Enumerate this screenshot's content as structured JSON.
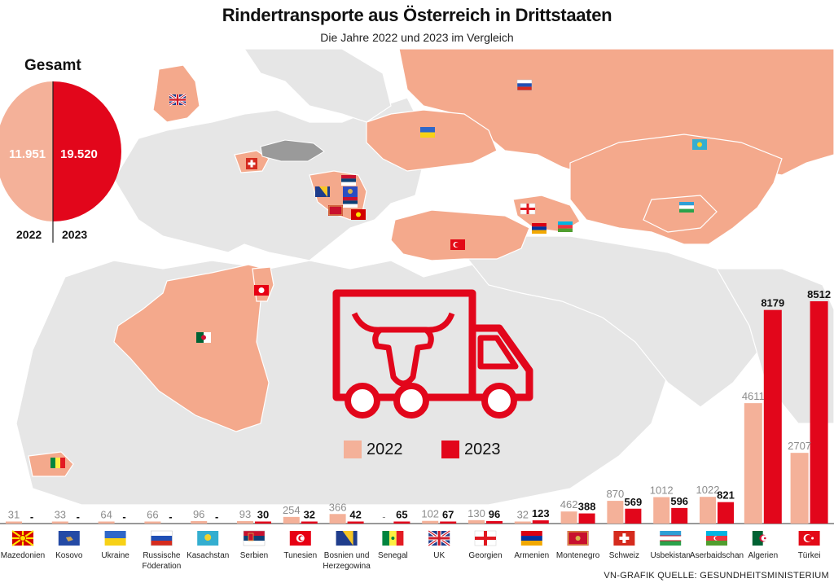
{
  "header": {
    "title": "Rindertransporte aus Österreich in Drittstaaten",
    "subtitle": "Die Jahre 2022 und 2023 im Vergleich"
  },
  "total": {
    "title": "Gesamt",
    "value_2022": "11.951",
    "value_2023": "19.520",
    "year_2022": "2022",
    "year_2023": "2023"
  },
  "legend": {
    "label_2022": "2022",
    "label_2023": "2023"
  },
  "colors": {
    "y2022": "#f4b199",
    "y2023": "#e2061b",
    "map_land": "#e3e3e3",
    "map_highlight": "#f4a98c",
    "austria": "#9a9a9a"
  },
  "chart_data": {
    "type": "bar",
    "series": [
      {
        "name": "2022",
        "values": [
          31,
          33,
          64,
          66,
          96,
          93,
          254,
          366,
          null,
          102,
          130,
          32,
          462,
          870,
          1012,
          1022,
          4611,
          2707
        ]
      },
      {
        "name": "2023",
        "values": [
          null,
          null,
          null,
          null,
          null,
          30,
          32,
          42,
          65,
          67,
          96,
          123,
          388,
          569,
          596,
          821,
          8179,
          8512
        ]
      }
    ],
    "categories": [
      "Mazedonien",
      "Kosovo",
      "Ukraine",
      "Russische Föderation",
      "Kasachstan",
      "Serbien",
      "Tunesien",
      "Bosnien und Herzegowina",
      "Senegal",
      "UK",
      "Georgien",
      "Armenien",
      "Montenegro",
      "Schweiz",
      "Usbekistan",
      "Aserbaidschan",
      "Algerien",
      "Türkei"
    ],
    "labels_2022": [
      "31",
      "33",
      "64",
      "66",
      "96",
      "93",
      "254",
      "366",
      "-",
      "102",
      "130",
      "32",
      "462",
      "870",
      "1012",
      "1022",
      "4611",
      "2707"
    ],
    "labels_2023": [
      "-",
      "-",
      "-",
      "-",
      "-",
      "30",
      "32",
      "42",
      "65",
      "67",
      "96",
      "123",
      "388",
      "569",
      "596",
      "821",
      "8179",
      "8512"
    ],
    "flags": [
      "mk",
      "xk",
      "ua",
      "ru",
      "kz",
      "rs",
      "tn",
      "ba",
      "sn",
      "gb",
      "ge",
      "am",
      "me",
      "ch",
      "uz",
      "az",
      "dz",
      "tr"
    ],
    "title": "Rindertransporte aus Österreich in Drittstaaten",
    "subtitle": "Die Jahre 2022 und 2023 im Vergleich",
    "grid": false,
    "legend": "center"
  },
  "footer": {
    "source": "VN-GRAFIK QUELLE: GESUNDHEITSMINISTERIUM"
  }
}
